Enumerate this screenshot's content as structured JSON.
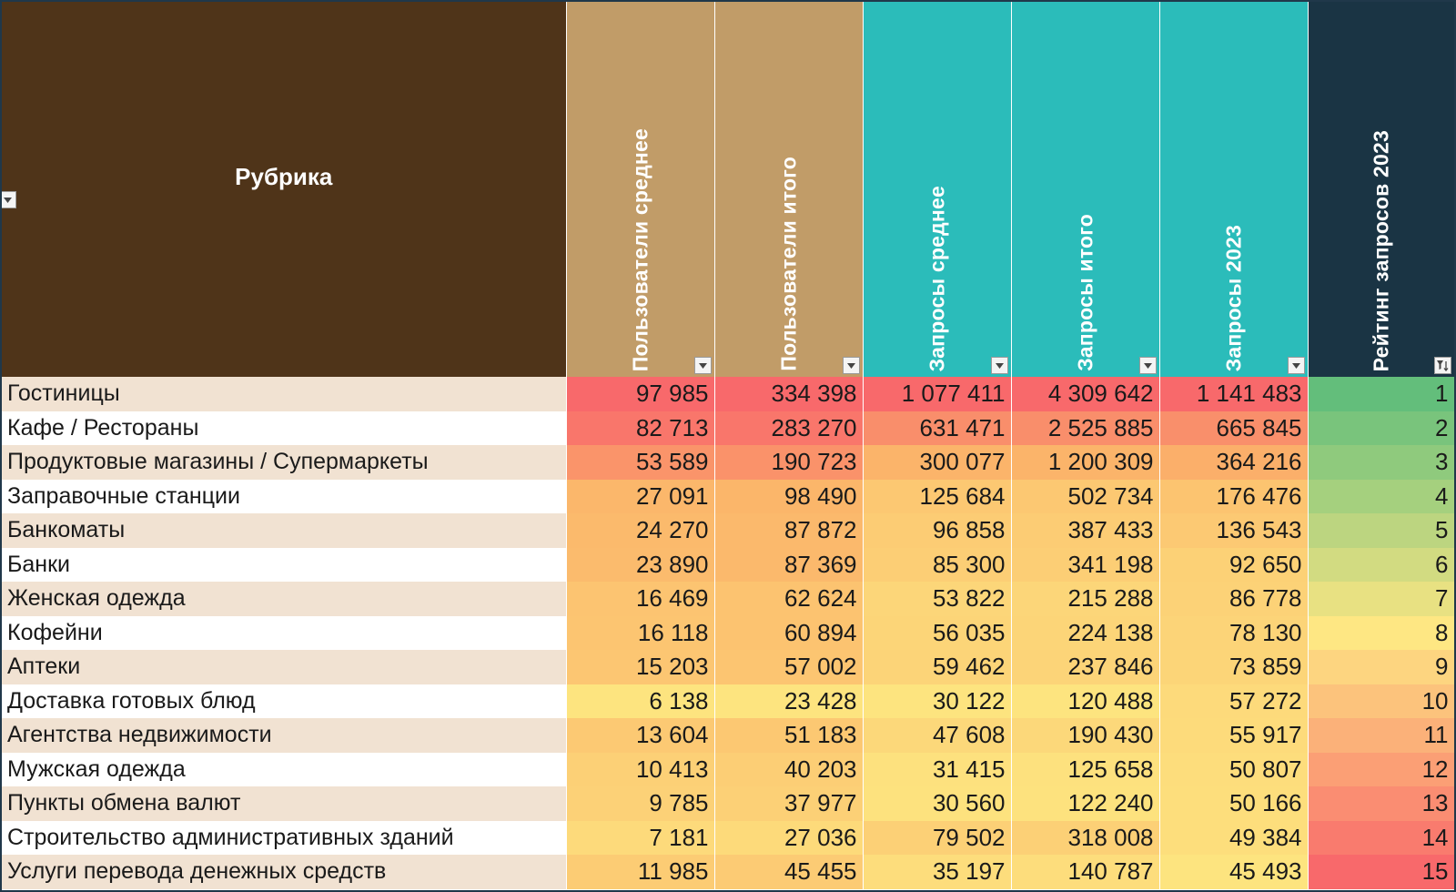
{
  "table": {
    "headers": [
      {
        "label": "Рубрика",
        "bg": "#4f3419"
      },
      {
        "label": "Пользователи среднее",
        "bg": "#c19c68"
      },
      {
        "label": "Пользователи итого",
        "bg": "#c19c68"
      },
      {
        "label": "Запросы среднее",
        "bg": "#2bbcba"
      },
      {
        "label": "Запросы итого",
        "bg": "#2bbcba"
      },
      {
        "label": "Запросы 2023",
        "bg": "#2bbcba"
      },
      {
        "label": "Рейтинг запросов 2023",
        "bg": "#1a3444"
      }
    ],
    "filter_icons": [
      "dropdown-arrow-icon",
      "dropdown-arrow-icon",
      "dropdown-arrow-icon",
      "dropdown-arrow-icon",
      "dropdown-arrow-icon",
      "dropdown-arrow-icon",
      "sort-filter-icon"
    ],
    "rows": [
      {
        "name": "Гостиницы",
        "users_avg": "97 985",
        "users_total": "334 398",
        "req_avg": "1 077 411",
        "req_total": "4 309 642",
        "req_2023": "1 141 483",
        "rank": "1"
      },
      {
        "name": "Кафе / Рестораны",
        "users_avg": "82 713",
        "users_total": "283 270",
        "req_avg": "631 471",
        "req_total": "2 525 885",
        "req_2023": "665 845",
        "rank": "2"
      },
      {
        "name": "Продуктовые магазины / Супермаркеты",
        "users_avg": "53 589",
        "users_total": "190 723",
        "req_avg": "300 077",
        "req_total": "1 200 309",
        "req_2023": "364 216",
        "rank": "3"
      },
      {
        "name": "Заправочные станции",
        "users_avg": "27 091",
        "users_total": "98 490",
        "req_avg": "125 684",
        "req_total": "502 734",
        "req_2023": "176 476",
        "rank": "4"
      },
      {
        "name": "Банкоматы",
        "users_avg": "24 270",
        "users_total": "87 872",
        "req_avg": "96 858",
        "req_total": "387 433",
        "req_2023": "136 543",
        "rank": "5"
      },
      {
        "name": "Банки",
        "users_avg": "23 890",
        "users_total": "87 369",
        "req_avg": "85 300",
        "req_total": "341 198",
        "req_2023": "92 650",
        "rank": "6"
      },
      {
        "name": "Женская одежда",
        "users_avg": "16 469",
        "users_total": "62 624",
        "req_avg": "53 822",
        "req_total": "215 288",
        "req_2023": "86 778",
        "rank": "7"
      },
      {
        "name": "Кофейни",
        "users_avg": "16 118",
        "users_total": "60 894",
        "req_avg": "56 035",
        "req_total": "224 138",
        "req_2023": "78 130",
        "rank": "8"
      },
      {
        "name": "Аптеки",
        "users_avg": "15 203",
        "users_total": "57 002",
        "req_avg": "59 462",
        "req_total": "237 846",
        "req_2023": "73 859",
        "rank": "9"
      },
      {
        "name": "Доставка готовых блюд",
        "users_avg": "6 138",
        "users_total": "23 428",
        "req_avg": "30 122",
        "req_total": "120 488",
        "req_2023": "57 272",
        "rank": "10"
      },
      {
        "name": "Агентства недвижимости",
        "users_avg": "13 604",
        "users_total": "51 183",
        "req_avg": "47 608",
        "req_total": "190 430",
        "req_2023": "55 917",
        "rank": "11"
      },
      {
        "name": "Мужская одежда",
        "users_avg": "10 413",
        "users_total": "40 203",
        "req_avg": "31 415",
        "req_total": "125 658",
        "req_2023": "50 807",
        "rank": "12"
      },
      {
        "name": "Пункты обмена валют",
        "users_avg": "9 785",
        "users_total": "37 977",
        "req_avg": "30 560",
        "req_total": "122 240",
        "req_2023": "50 166",
        "rank": "13"
      },
      {
        "name": "Строительство административных зданий",
        "users_avg": "7 181",
        "users_total": "27 036",
        "req_avg": "79 502",
        "req_total": "318 008",
        "req_2023": "49 384",
        "rank": "14"
      },
      {
        "name": "Услуги перевода денежных средств",
        "users_avg": "11 985",
        "users_total": "45 455",
        "req_avg": "35 197",
        "req_total": "140 787",
        "req_2023": "45 493",
        "rank": "15"
      }
    ],
    "color_scale": {
      "numeric": {
        "low": "#fde47f",
        "mid": "#fbb56a",
        "high": "#f8696b"
      },
      "rank": {
        "low": "#63be7b",
        "mid": "#fee783",
        "high": "#f8696b"
      }
    }
  }
}
